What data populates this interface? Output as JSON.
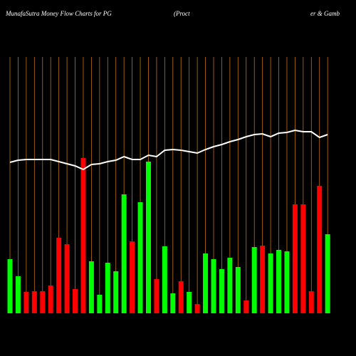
{
  "chart_data": {
    "type": "bar",
    "title": "MunafaSutra  Money Flow  Charts for PG",
    "annotations": [
      "(Proct",
      "er & Gamb"
    ],
    "categories": [
      null,
      null,
      null,
      null,
      null,
      null,
      null,
      null,
      null,
      null,
      null,
      null,
      null,
      null,
      null,
      null,
      null,
      null,
      null,
      null,
      null,
      null,
      null,
      null,
      null,
      null,
      null,
      null,
      null,
      null,
      null,
      null,
      null,
      null,
      null,
      null,
      null,
      null,
      null,
      null
    ],
    "series": [
      {
        "color": "#00ff00",
        "colors": [
          "#00ff00",
          "#00ff00",
          "#ff0000",
          "#ff0000",
          "#ff0000",
          "#ff0000",
          "#ff0000",
          "#ff0000",
          "#ff0000",
          "#ff0000",
          "#00ff00",
          "#00ff00",
          "#00ff00",
          "#00ff00",
          "#00ff00",
          "#ff0000",
          "#00ff00",
          "#00ff00",
          "#ff0000",
          "#00ff00",
          "#00ff00",
          "#ff0000",
          "#00ff00",
          "#ff0000",
          "#00ff00",
          "#00ff00",
          "#00ff00",
          "#00ff00",
          "#00ff00",
          "#ff0000",
          "#00ff00",
          "#ff0000",
          "#00ff00",
          "#00ff00",
          "#00ff00",
          "#ff0000",
          "#ff0000",
          "#ff0000",
          "#ff0000",
          "#00ff00"
        ],
        "values": [
          76,
          52,
          30,
          31,
          31,
          39,
          106,
          97,
          34,
          218,
          73,
          26,
          71,
          59,
          167,
          101,
          156,
          213,
          48,
          94,
          28,
          45,
          30,
          13,
          84,
          76,
          62,
          78,
          65,
          18,
          93,
          95,
          84,
          89,
          87,
          153,
          153,
          31,
          179,
          111
        ]
      },
      {
        "type": "line",
        "color": "#ffffff",
        "values": [
          212,
          215,
          216,
          216,
          216,
          216,
          213,
          210,
          207,
          202,
          209,
          210,
          213,
          215,
          220,
          216,
          216,
          222,
          220,
          229,
          230,
          229,
          227,
          225,
          230,
          234,
          237,
          241,
          244,
          248,
          251,
          252,
          248,
          253,
          254,
          257,
          255,
          255,
          247,
          251
        ]
      }
    ]
  }
}
